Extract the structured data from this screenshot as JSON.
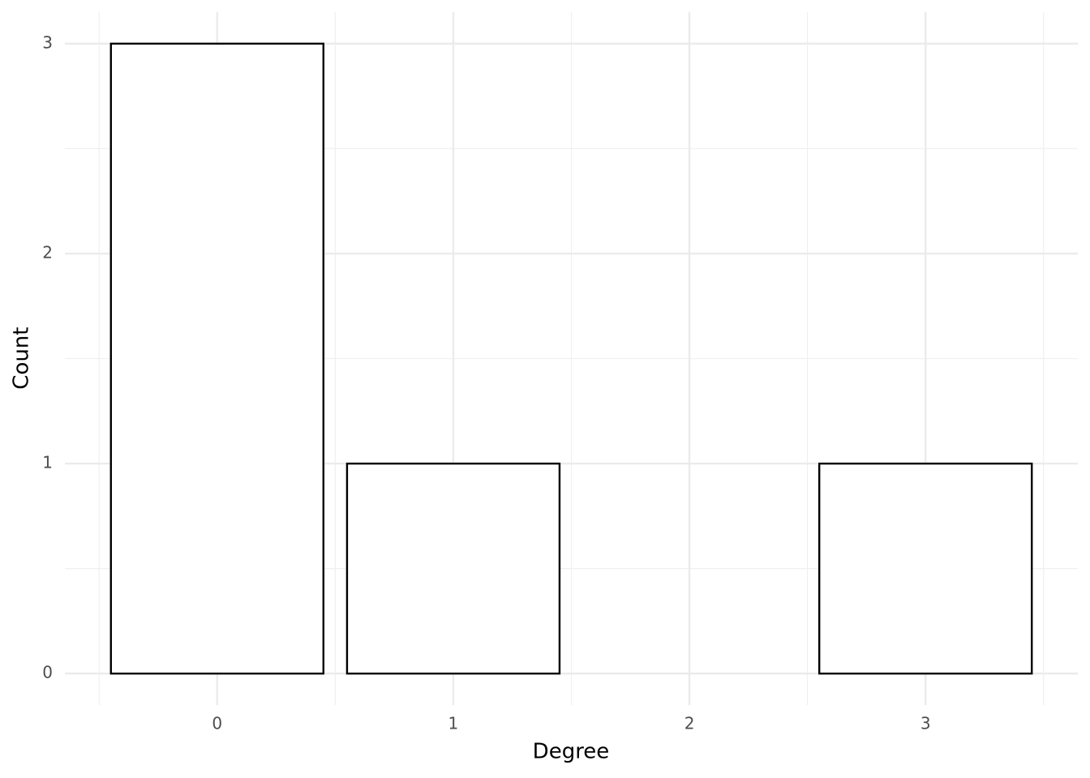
{
  "chart_data": {
    "type": "bar",
    "x_label": "Degree",
    "y_label": "Count",
    "x": [
      0,
      1,
      3
    ],
    "values": [
      3,
      1,
      1
    ],
    "color": "#ffffff",
    "edge_color": "#000000",
    "xlim": [
      -0.645,
      3.645
    ],
    "xticks": [
      0,
      1,
      2,
      3
    ],
    "ylim": [
      -0.15,
      3.15
    ],
    "yticks": [
      0,
      1,
      2,
      3
    ],
    "grid": true
  }
}
